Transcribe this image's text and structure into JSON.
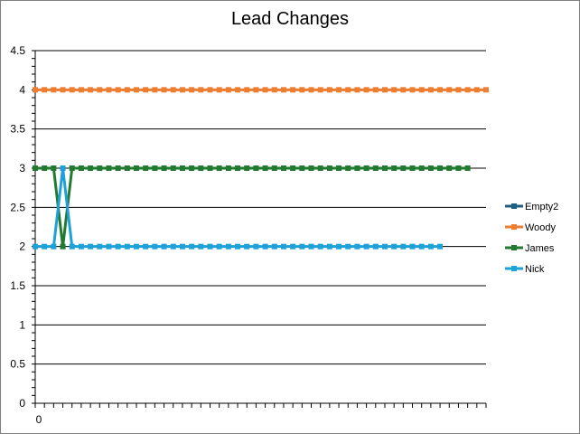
{
  "chart_data": {
    "type": "line",
    "title": "Lead Changes",
    "xlabel": "",
    "ylabel": "",
    "ylim": [
      0,
      4.5
    ],
    "y_ticks": [
      "0",
      "0.5",
      "1",
      "1.5",
      "2",
      "2.5",
      "3",
      "3.5",
      "4",
      "4.5"
    ],
    "x_tick_labels": [
      "0"
    ],
    "grid": true,
    "legend_position": "right",
    "x_count": 50,
    "series": [
      {
        "name": "Empty2",
        "color": "#1f5f7f",
        "values": []
      },
      {
        "name": "Woody",
        "color": "#ed7d31",
        "values": [
          4,
          4,
          4,
          4,
          4,
          4,
          4,
          4,
          4,
          4,
          4,
          4,
          4,
          4,
          4,
          4,
          4,
          4,
          4,
          4,
          4,
          4,
          4,
          4,
          4,
          4,
          4,
          4,
          4,
          4,
          4,
          4,
          4,
          4,
          4,
          4,
          4,
          4,
          4,
          4,
          4,
          4,
          4,
          4,
          4,
          4,
          4,
          4,
          4,
          4
        ]
      },
      {
        "name": "James",
        "color": "#217a30",
        "values": [
          3,
          3,
          3,
          2,
          3,
          3,
          3,
          3,
          3,
          3,
          3,
          3,
          3,
          3,
          3,
          3,
          3,
          3,
          3,
          3,
          3,
          3,
          3,
          3,
          3,
          3,
          3,
          3,
          3,
          3,
          3,
          3,
          3,
          3,
          3,
          3,
          3,
          3,
          3,
          3,
          3,
          3,
          3,
          3,
          3,
          3,
          3,
          3
        ]
      },
      {
        "name": "Nick",
        "color": "#1ea0d8",
        "values": [
          2,
          2,
          2,
          3,
          2,
          2,
          2,
          2,
          2,
          2,
          2,
          2,
          2,
          2,
          2,
          2,
          2,
          2,
          2,
          2,
          2,
          2,
          2,
          2,
          2,
          2,
          2,
          2,
          2,
          2,
          2,
          2,
          2,
          2,
          2,
          2,
          2,
          2,
          2,
          2,
          2,
          2,
          2,
          2,
          2
        ]
      }
    ]
  }
}
